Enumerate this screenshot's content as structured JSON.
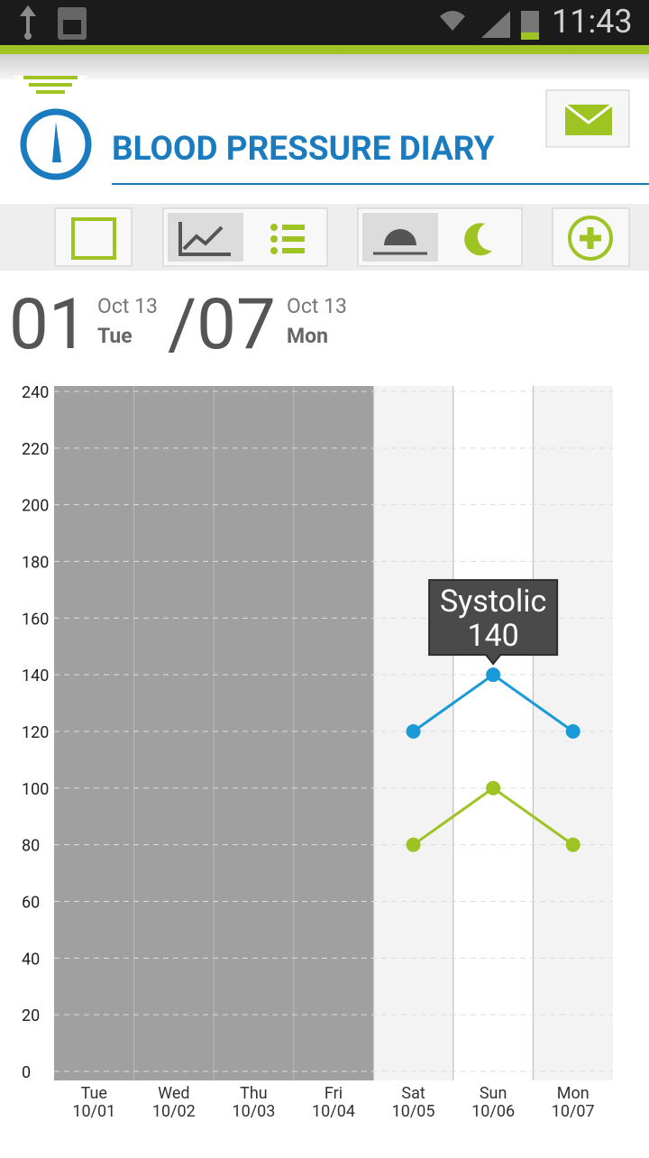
{
  "status_bar": {
    "time": "11:43"
  },
  "header": {
    "title": "BLOOD PRESSURE DIARY"
  },
  "date_range": {
    "start_day": "01",
    "start_month": "Oct 13",
    "start_weekday": "Tue",
    "end_day": "/07",
    "end_month": "Oct 13",
    "end_weekday": "Mon"
  },
  "chart_data": {
    "type": "line",
    "categories": [
      "Tue\n10/01",
      "Wed\n10/02",
      "Thu\n10/03",
      "Fri\n10/04",
      "Sat\n10/05",
      "Sun\n10/06",
      "Mon\n10/07"
    ],
    "band_colors": [
      "#a0a0a0",
      "#a0a0a0",
      "#a0a0a0",
      "#a0a0a0",
      "#f3f3f3",
      "#ffffff",
      "#f3f3f3"
    ],
    "series": [
      {
        "color": "#1a9ad6",
        "values": [
          null,
          null,
          null,
          null,
          120,
          140,
          120
        ]
      },
      {
        "color": "#9dc423",
        "values": [
          null,
          null,
          null,
          null,
          80,
          100,
          80
        ]
      }
    ],
    "ylim": [
      0,
      240
    ],
    "yticks": [
      0,
      20,
      40,
      60,
      80,
      100,
      120,
      140,
      160,
      180,
      200,
      220,
      240
    ],
    "grid": true,
    "tooltip": {
      "label": "Systolic",
      "value": 140,
      "series": 0,
      "index": 5
    }
  }
}
